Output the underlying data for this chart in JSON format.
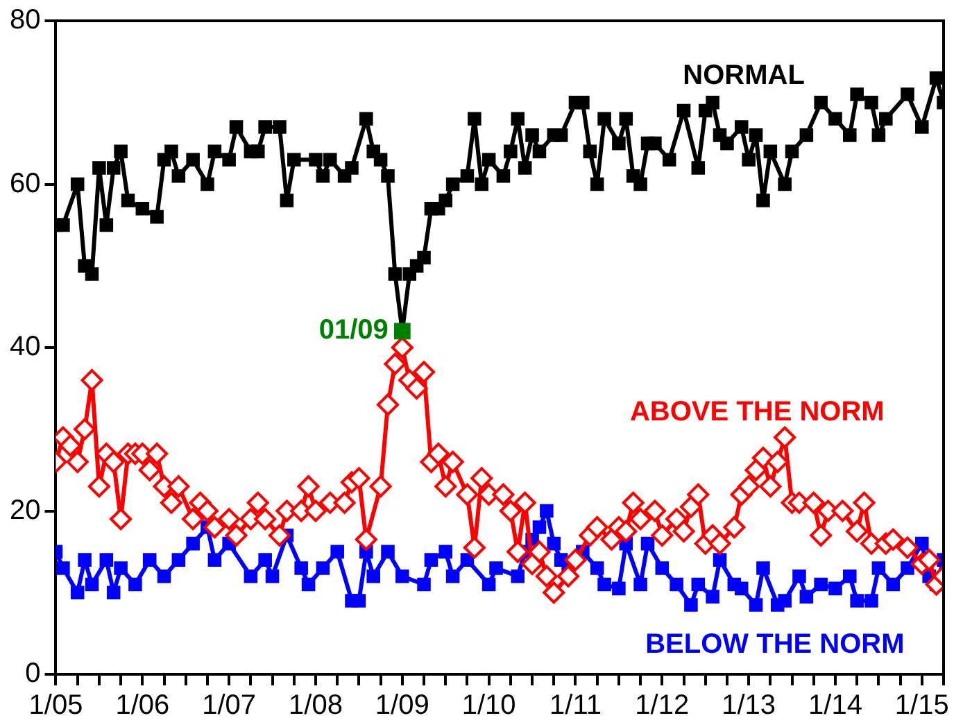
{
  "chart_data": {
    "type": "line",
    "legend": false,
    "grid": false,
    "line_style": "solid",
    "xlim": [
      "2005-01",
      "2015-04"
    ],
    "xticks": [
      {
        "value": "2005-01",
        "label": "1/05"
      },
      {
        "value": "2005-04",
        "label": null
      },
      {
        "value": "2005-07",
        "label": null
      },
      {
        "value": "2005-10",
        "label": null
      },
      {
        "value": "2006-01",
        "label": "1/06"
      },
      {
        "value": "2006-04",
        "label": null
      },
      {
        "value": "2006-07",
        "label": null
      },
      {
        "value": "2006-10",
        "label": null
      },
      {
        "value": "2007-01",
        "label": "1/07"
      },
      {
        "value": "2007-04",
        "label": null
      },
      {
        "value": "2007-07",
        "label": null
      },
      {
        "value": "2007-10",
        "label": null
      },
      {
        "value": "2008-01",
        "label": "1/08"
      },
      {
        "value": "2008-04",
        "label": null
      },
      {
        "value": "2008-07",
        "label": null
      },
      {
        "value": "2008-10",
        "label": null
      },
      {
        "value": "2009-01",
        "label": "1/09"
      },
      {
        "value": "2009-04",
        "label": null
      },
      {
        "value": "2009-07",
        "label": null
      },
      {
        "value": "2009-10",
        "label": null
      },
      {
        "value": "2010-01",
        "label": "1/10"
      },
      {
        "value": "2010-04",
        "label": null
      },
      {
        "value": "2010-07",
        "label": null
      },
      {
        "value": "2010-10",
        "label": null
      },
      {
        "value": "2011-01",
        "label": "1/11"
      },
      {
        "value": "2011-04",
        "label": null
      },
      {
        "value": "2011-07",
        "label": null
      },
      {
        "value": "2011-10",
        "label": null
      },
      {
        "value": "2012-01",
        "label": "1/12"
      },
      {
        "value": "2012-04",
        "label": null
      },
      {
        "value": "2012-07",
        "label": null
      },
      {
        "value": "2012-10",
        "label": null
      },
      {
        "value": "2013-01",
        "label": "1/13"
      },
      {
        "value": "2013-04",
        "label": null
      },
      {
        "value": "2013-07",
        "label": null
      },
      {
        "value": "2013-10",
        "label": null
      },
      {
        "value": "2014-01",
        "label": "1/14"
      },
      {
        "value": "2014-04",
        "label": null
      },
      {
        "value": "2014-07",
        "label": null
      },
      {
        "value": "2014-10",
        "label": null
      },
      {
        "value": "2015-01",
        "label": "1/15"
      },
      {
        "value": "2015-04",
        "label": null
      }
    ],
    "ylim": [
      0,
      80
    ],
    "yticks": [
      0,
      20,
      40,
      60,
      80
    ],
    "annotations": [
      {
        "text": "01/09",
        "x": "2009-01",
        "y": 42
      }
    ],
    "series": [
      {
        "name": "NORMAL",
        "color": "#000000",
        "marker": "square",
        "x": [
          "2005-01",
          "2005-02",
          "2005-04",
          "2005-05",
          "2005-06",
          "2005-07",
          "2005-08",
          "2005-09",
          "2005-10",
          "2005-11",
          "2006-01",
          "2006-03",
          "2006-04",
          "2006-05",
          "2006-06",
          "2006-08",
          "2006-10",
          "2006-11",
          "2007-01",
          "2007-02",
          "2007-04",
          "2007-05",
          "2007-06",
          "2007-08",
          "2007-09",
          "2007-10",
          "2008-01",
          "2008-02",
          "2008-03",
          "2008-05",
          "2008-06",
          "2008-08",
          "2008-09",
          "2008-10",
          "2008-11",
          "2008-12",
          "2009-01",
          "2009-02",
          "2009-03",
          "2009-04",
          "2009-05",
          "2009-06",
          "2009-07",
          "2009-08",
          "2009-10",
          "2009-11",
          "2009-12",
          "2010-01",
          "2010-03",
          "2010-04",
          "2010-05",
          "2010-06",
          "2010-07",
          "2010-08",
          "2010-10",
          "2010-11",
          "2011-01",
          "2011-02",
          "2011-03",
          "2011-04",
          "2011-05",
          "2011-07",
          "2011-08",
          "2011-09",
          "2011-10",
          "2011-11",
          "2011-12",
          "2012-02",
          "2012-04",
          "2012-06",
          "2012-07",
          "2012-08",
          "2012-09",
          "2012-10",
          "2012-12",
          "2013-01",
          "2013-02",
          "2013-03",
          "2013-04",
          "2013-06",
          "2013-07",
          "2013-09",
          "2013-11",
          "2014-01",
          "2014-03",
          "2014-04",
          "2014-06",
          "2014-07",
          "2014-08",
          "2014-11",
          "2015-01",
          "2015-03",
          "2015-04"
        ],
        "values": [
          55,
          55,
          60,
          50,
          49,
          62,
          55,
          62,
          64,
          58,
          57,
          56,
          63,
          64,
          61,
          63,
          60,
          64,
          63,
          67,
          64,
          64,
          67,
          67,
          58,
          63,
          63,
          61,
          63,
          61,
          62,
          68,
          64,
          63,
          61,
          49,
          42,
          49,
          50,
          51,
          57,
          57,
          58,
          60,
          61,
          68,
          60,
          63,
          61,
          64,
          68,
          62,
          66,
          64,
          66,
          66,
          70,
          70,
          64,
          60,
          68,
          65,
          68,
          61,
          60,
          65,
          65,
          63,
          69,
          62,
          69,
          70,
          66,
          65,
          67,
          63,
          66,
          58,
          64,
          60,
          64,
          66,
          70,
          68,
          66,
          71,
          70,
          66,
          68,
          71,
          67,
          73,
          70
        ]
      },
      {
        "name": "ABOVE THE NORM",
        "color": "#ff0000",
        "marker": "diamond",
        "x": [
          "2005-01",
          "2005-02",
          "2005-03",
          "2005-04",
          "2005-05",
          "2005-06",
          "2005-07",
          "2005-08",
          "2005-09",
          "2005-10",
          "2005-11",
          "2005-12",
          "2006-01",
          "2006-02",
          "2006-03",
          "2006-04",
          "2006-05",
          "2006-06",
          "2006-08",
          "2006-09",
          "2006-10",
          "2006-11",
          "2007-01",
          "2007-02",
          "2007-04",
          "2007-05",
          "2007-06",
          "2007-08",
          "2007-09",
          "2007-11",
          "2007-12",
          "2008-01",
          "2008-03",
          "2008-05",
          "2008-06",
          "2008-07",
          "2008-08",
          "2008-10",
          "2008-11",
          "2008-12",
          "2009-01",
          "2009-02",
          "2009-03",
          "2009-04",
          "2009-05",
          "2009-06",
          "2009-07",
          "2009-08",
          "2009-10",
          "2009-11",
          "2009-12",
          "2010-01",
          "2010-03",
          "2010-04",
          "2010-05",
          "2010-06",
          "2010-07",
          "2010-08",
          "2010-09",
          "2010-10",
          "2010-12",
          "2011-01",
          "2011-03",
          "2011-04",
          "2011-06",
          "2011-07",
          "2011-08",
          "2011-09",
          "2011-10",
          "2011-12",
          "2012-01",
          "2012-03",
          "2012-04",
          "2012-05",
          "2012-06",
          "2012-07",
          "2012-08",
          "2012-09",
          "2012-11",
          "2012-12",
          "2013-01",
          "2013-02",
          "2013-03",
          "2013-04",
          "2013-05",
          "2013-06",
          "2013-07",
          "2013-08",
          "2013-10",
          "2013-11",
          "2013-12",
          "2014-02",
          "2014-04",
          "2014-05",
          "2014-06",
          "2014-08",
          "2014-09",
          "2014-11",
          "2015-01",
          "2015-02",
          "2015-03",
          "2015-04"
        ],
        "values": [
          26,
          29,
          28,
          26,
          30,
          36,
          23,
          27,
          26,
          19,
          27,
          27,
          27,
          25,
          27,
          23,
          21,
          23,
          19,
          21,
          20,
          18,
          19,
          17,
          19,
          21,
          19,
          17,
          20,
          20,
          23,
          20,
          21,
          21,
          23.5,
          24,
          16.5,
          23,
          33,
          38,
          40,
          36,
          35,
          37,
          26,
          27,
          23,
          26,
          22,
          15.5,
          24,
          22,
          22,
          20,
          15,
          21,
          13.5,
          15,
          12,
          10,
          12,
          14,
          17,
          18,
          16.5,
          18,
          17.5,
          21,
          19,
          20,
          17,
          19,
          17.5,
          20.5,
          22,
          16,
          17,
          16,
          18,
          22,
          23,
          25,
          26.5,
          23,
          26,
          29,
          21,
          21,
          21,
          17,
          20,
          20,
          17.5,
          21,
          16,
          16,
          16.5,
          15.5,
          13.5,
          14,
          11,
          12
        ]
      },
      {
        "name": "BELOW THE NORM",
        "color": "#0000ff",
        "marker": "square",
        "x": [
          "2005-01",
          "2005-02",
          "2005-04",
          "2005-05",
          "2005-06",
          "2005-08",
          "2005-09",
          "2005-10",
          "2005-12",
          "2006-02",
          "2006-04",
          "2006-06",
          "2006-08",
          "2006-10",
          "2006-11",
          "2007-01",
          "2007-04",
          "2007-06",
          "2007-07",
          "2007-09",
          "2007-11",
          "2007-12",
          "2008-02",
          "2008-04",
          "2008-06",
          "2008-07",
          "2008-08",
          "2008-09",
          "2008-11",
          "2009-01",
          "2009-04",
          "2009-05",
          "2009-07",
          "2009-08",
          "2009-10",
          "2010-01",
          "2010-02",
          "2010-05",
          "2010-06",
          "2010-07",
          "2010-08",
          "2010-09",
          "2010-10",
          "2010-11",
          "2010-12",
          "2011-02",
          "2011-04",
          "2011-05",
          "2011-07",
          "2011-08",
          "2011-10",
          "2011-11",
          "2012-01",
          "2012-03",
          "2012-05",
          "2012-06",
          "2012-08",
          "2012-09",
          "2012-11",
          "2012-12",
          "2013-02",
          "2013-03",
          "2013-05",
          "2013-06",
          "2013-08",
          "2013-09",
          "2013-11",
          "2014-01",
          "2014-03",
          "2014-04",
          "2014-06",
          "2014-07",
          "2014-09",
          "2014-11",
          "2015-01",
          "2015-02",
          "2015-03",
          "2015-04"
        ],
        "values": [
          15,
          13,
          10,
          14,
          11,
          14,
          10,
          13,
          11,
          14,
          12,
          14,
          16,
          18,
          14,
          16,
          12,
          14,
          12,
          17,
          13,
          11,
          13,
          15,
          9,
          9,
          15,
          12,
          15,
          12,
          11,
          14,
          15,
          12,
          14,
          11,
          13,
          12,
          15,
          16.5,
          18,
          20,
          16,
          14,
          13,
          15,
          13,
          11,
          10.5,
          16,
          11,
          16,
          13,
          11,
          8.5,
          11,
          9.5,
          14,
          11,
          10.5,
          8.5,
          13,
          8.5,
          9,
          12,
          9.5,
          11,
          10.5,
          12,
          9,
          9,
          13,
          11,
          13,
          16,
          12,
          11,
          14
        ]
      }
    ]
  }
}
